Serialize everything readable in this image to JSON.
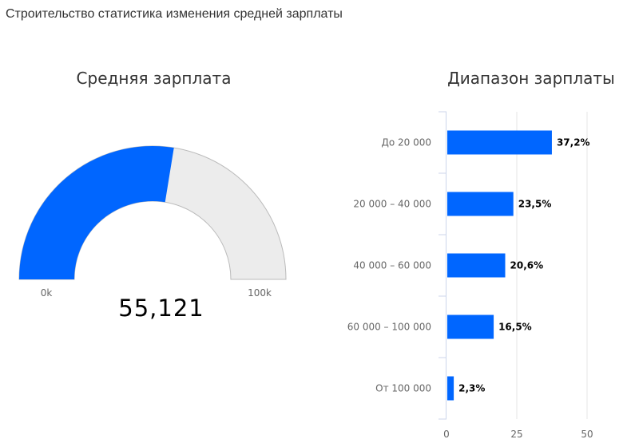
{
  "page": {
    "title": "Строительство статистика изменения средней зарплаты"
  },
  "colors": {
    "accent": "#0066ff",
    "track": "#ececec",
    "track_border": "#bbbbbb",
    "grid": "#e6e6e6",
    "axis": "#ccd6eb"
  },
  "chart_data": [
    {
      "type": "gauge",
      "title": "Средняя зарплата",
      "value": 55121,
      "value_label": "55,121",
      "min": 0,
      "max": 100000,
      "min_label": "0k",
      "max_label": "100k"
    },
    {
      "type": "bar",
      "orientation": "horizontal",
      "title": "Диапазон зарплаты",
      "categories": [
        "До 20 000",
        "20 000 – 40 000",
        "40 000 – 60 000",
        "60 000 – 100 000",
        "От 100 000"
      ],
      "values": [
        37.2,
        23.5,
        20.6,
        16.5,
        2.3
      ],
      "value_labels": [
        "37,2%",
        "23,5%",
        "20,6%",
        "16,5%",
        "2,3%"
      ],
      "x_ticks": [
        "0",
        "25",
        "50"
      ],
      "xlim": [
        0,
        50
      ],
      "grid": true
    }
  ]
}
